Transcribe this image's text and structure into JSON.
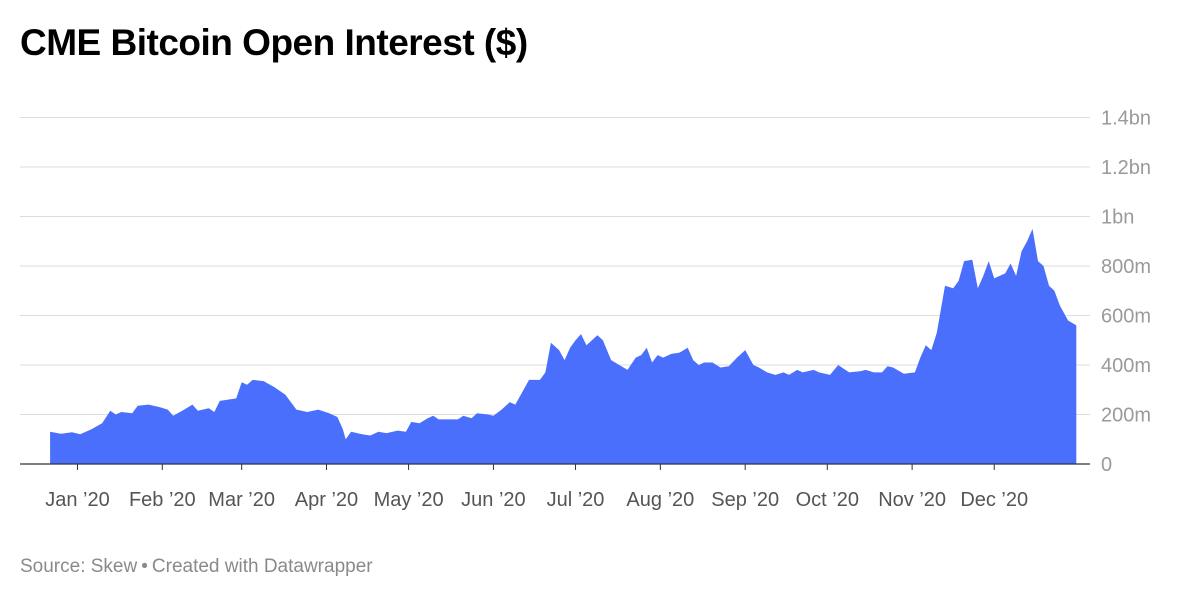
{
  "title": "CME Bitcoin Open Interest ($)",
  "footer": {
    "source": "Source: Skew",
    "separator": "•",
    "credit": "Created with Datawrapper"
  },
  "colors": {
    "area": "#4a6ffc",
    "grid": "#dddddd",
    "axis": "#333333"
  },
  "chart_data": {
    "type": "area",
    "title": "CME Bitcoin Open Interest ($)",
    "xlabel": "",
    "ylabel": "",
    "ylim": [
      0,
      1450000000
    ],
    "grid": true,
    "y_ticks": [
      {
        "value": 0,
        "label": "0"
      },
      {
        "value": 200000000,
        "label": "200m"
      },
      {
        "value": 400000000,
        "label": "400m"
      },
      {
        "value": 600000000,
        "label": "600m"
      },
      {
        "value": 800000000,
        "label": "800m"
      },
      {
        "value": 1000000000,
        "label": "1bn"
      },
      {
        "value": 1200000000,
        "label": "1.2bn"
      },
      {
        "value": 1400000000,
        "label": "1.4bn"
      }
    ],
    "x_ticks": [
      {
        "date": "2020-01-01",
        "label": "Jan ’20"
      },
      {
        "date": "2020-02-01",
        "label": "Feb ’20"
      },
      {
        "date": "2020-03-01",
        "label": "Mar ’20"
      },
      {
        "date": "2020-04-01",
        "label": "Apr ’20"
      },
      {
        "date": "2020-05-01",
        "label": "May ’20"
      },
      {
        "date": "2020-06-01",
        "label": "Jun ’20"
      },
      {
        "date": "2020-07-01",
        "label": "Jul ’20"
      },
      {
        "date": "2020-08-01",
        "label": "Aug ’20"
      },
      {
        "date": "2020-09-01",
        "label": "Sep ’20"
      },
      {
        "date": "2020-10-01",
        "label": "Oct ’20"
      },
      {
        "date": "2020-11-01",
        "label": "Nov ’20"
      },
      {
        "date": "2020-12-01",
        "label": "Dec ’20"
      }
    ],
    "series": [
      {
        "values": [
          [
            "2019-12-22",
            130000000
          ],
          [
            "2019-12-26",
            122000000
          ],
          [
            "2019-12-30",
            128000000
          ],
          [
            "2020-01-02",
            120000000
          ],
          [
            "2020-01-06",
            140000000
          ],
          [
            "2020-01-10",
            165000000
          ],
          [
            "2020-01-13",
            215000000
          ],
          [
            "2020-01-15",
            200000000
          ],
          [
            "2020-01-17",
            210000000
          ],
          [
            "2020-01-21",
            205000000
          ],
          [
            "2020-01-23",
            235000000
          ],
          [
            "2020-01-27",
            240000000
          ],
          [
            "2020-01-31",
            230000000
          ],
          [
            "2020-02-03",
            220000000
          ],
          [
            "2020-02-05",
            195000000
          ],
          [
            "2020-02-09",
            220000000
          ],
          [
            "2020-02-12",
            240000000
          ],
          [
            "2020-02-14",
            215000000
          ],
          [
            "2020-02-18",
            225000000
          ],
          [
            "2020-02-20",
            210000000
          ],
          [
            "2020-02-22",
            255000000
          ],
          [
            "2020-02-25",
            260000000
          ],
          [
            "2020-02-28",
            265000000
          ],
          [
            "2020-03-01",
            330000000
          ],
          [
            "2020-03-03",
            320000000
          ],
          [
            "2020-03-05",
            340000000
          ],
          [
            "2020-03-09",
            335000000
          ],
          [
            "2020-03-13",
            310000000
          ],
          [
            "2020-03-17",
            280000000
          ],
          [
            "2020-03-21",
            220000000
          ],
          [
            "2020-03-25",
            210000000
          ],
          [
            "2020-03-29",
            220000000
          ],
          [
            "2020-04-02",
            205000000
          ],
          [
            "2020-04-05",
            190000000
          ],
          [
            "2020-04-07",
            140000000
          ],
          [
            "2020-04-08",
            100000000
          ],
          [
            "2020-04-10",
            130000000
          ],
          [
            "2020-04-14",
            120000000
          ],
          [
            "2020-04-17",
            115000000
          ],
          [
            "2020-04-20",
            130000000
          ],
          [
            "2020-04-23",
            125000000
          ],
          [
            "2020-04-27",
            135000000
          ],
          [
            "2020-04-30",
            130000000
          ],
          [
            "2020-05-02",
            170000000
          ],
          [
            "2020-05-05",
            165000000
          ],
          [
            "2020-05-08",
            185000000
          ],
          [
            "2020-05-10",
            195000000
          ],
          [
            "2020-05-12",
            180000000
          ],
          [
            "2020-05-15",
            180000000
          ],
          [
            "2020-05-19",
            180000000
          ],
          [
            "2020-05-21",
            195000000
          ],
          [
            "2020-05-24",
            185000000
          ],
          [
            "2020-05-26",
            205000000
          ],
          [
            "2020-05-30",
            200000000
          ],
          [
            "2020-06-01",
            195000000
          ],
          [
            "2020-06-04",
            220000000
          ],
          [
            "2020-06-07",
            250000000
          ],
          [
            "2020-06-09",
            240000000
          ],
          [
            "2020-06-11",
            280000000
          ],
          [
            "2020-06-14",
            340000000
          ],
          [
            "2020-06-18",
            340000000
          ],
          [
            "2020-06-20",
            370000000
          ],
          [
            "2020-06-22",
            490000000
          ],
          [
            "2020-06-25",
            460000000
          ],
          [
            "2020-06-27",
            420000000
          ],
          [
            "2020-06-29",
            470000000
          ],
          [
            "2020-07-01",
            500000000
          ],
          [
            "2020-07-03",
            525000000
          ],
          [
            "2020-07-05",
            480000000
          ],
          [
            "2020-07-07",
            500000000
          ],
          [
            "2020-07-09",
            520000000
          ],
          [
            "2020-07-11",
            500000000
          ],
          [
            "2020-07-14",
            420000000
          ],
          [
            "2020-07-17",
            400000000
          ],
          [
            "2020-07-20",
            380000000
          ],
          [
            "2020-07-23",
            430000000
          ],
          [
            "2020-07-25",
            440000000
          ],
          [
            "2020-07-27",
            470000000
          ],
          [
            "2020-07-29",
            410000000
          ],
          [
            "2020-07-31",
            440000000
          ],
          [
            "2020-08-02",
            430000000
          ],
          [
            "2020-08-05",
            445000000
          ],
          [
            "2020-08-08",
            450000000
          ],
          [
            "2020-08-11",
            470000000
          ],
          [
            "2020-08-13",
            420000000
          ],
          [
            "2020-08-15",
            400000000
          ],
          [
            "2020-08-17",
            410000000
          ],
          [
            "2020-08-20",
            410000000
          ],
          [
            "2020-08-23",
            390000000
          ],
          [
            "2020-08-26",
            395000000
          ],
          [
            "2020-08-29",
            430000000
          ],
          [
            "2020-09-01",
            460000000
          ],
          [
            "2020-09-04",
            400000000
          ],
          [
            "2020-09-06",
            390000000
          ],
          [
            "2020-09-09",
            370000000
          ],
          [
            "2020-09-12",
            360000000
          ],
          [
            "2020-09-15",
            370000000
          ],
          [
            "2020-09-17",
            360000000
          ],
          [
            "2020-09-20",
            380000000
          ],
          [
            "2020-09-22",
            370000000
          ],
          [
            "2020-09-26",
            380000000
          ],
          [
            "2020-09-28",
            370000000
          ],
          [
            "2020-10-02",
            360000000
          ],
          [
            "2020-10-05",
            400000000
          ],
          [
            "2020-10-07",
            385000000
          ],
          [
            "2020-10-09",
            370000000
          ],
          [
            "2020-10-13",
            375000000
          ],
          [
            "2020-10-15",
            380000000
          ],
          [
            "2020-10-18",
            370000000
          ],
          [
            "2020-10-21",
            370000000
          ],
          [
            "2020-10-23",
            395000000
          ],
          [
            "2020-10-25",
            390000000
          ],
          [
            "2020-10-29",
            365000000
          ],
          [
            "2020-11-02",
            370000000
          ],
          [
            "2020-11-04",
            430000000
          ],
          [
            "2020-11-06",
            480000000
          ],
          [
            "2020-11-08",
            460000000
          ],
          [
            "2020-11-10",
            530000000
          ],
          [
            "2020-11-13",
            720000000
          ],
          [
            "2020-11-16",
            710000000
          ],
          [
            "2020-11-18",
            740000000
          ],
          [
            "2020-11-20",
            820000000
          ],
          [
            "2020-11-23",
            825000000
          ],
          [
            "2020-11-25",
            710000000
          ],
          [
            "2020-11-27",
            760000000
          ],
          [
            "2020-11-29",
            820000000
          ],
          [
            "2020-12-01",
            750000000
          ],
          [
            "2020-12-03",
            760000000
          ],
          [
            "2020-12-05",
            770000000
          ],
          [
            "2020-12-07",
            810000000
          ],
          [
            "2020-12-09",
            760000000
          ],
          [
            "2020-12-11",
            860000000
          ],
          [
            "2020-12-13",
            900000000
          ],
          [
            "2020-12-15",
            950000000
          ],
          [
            "2020-12-17",
            820000000
          ],
          [
            "2020-12-19",
            800000000
          ],
          [
            "2020-12-21",
            720000000
          ],
          [
            "2020-12-23",
            700000000
          ],
          [
            "2020-12-25",
            640000000
          ],
          [
            "2020-12-28",
            580000000
          ],
          [
            "2020-12-31",
            560000000
          ]
        ]
      }
    ]
  }
}
